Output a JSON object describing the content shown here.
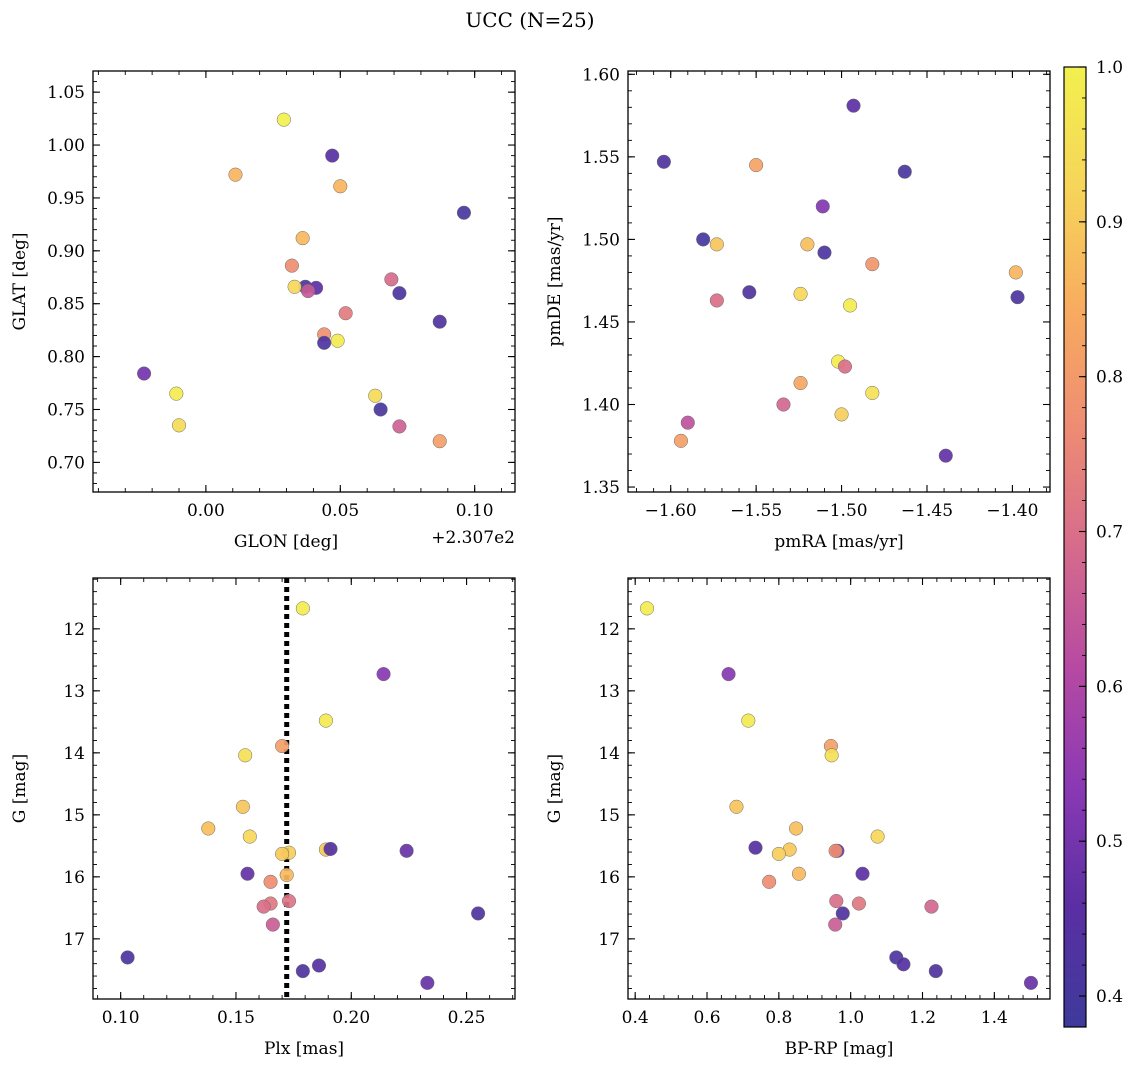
{
  "figure_title": "UCC (N=25)",
  "colormap": {
    "name": "plasma",
    "stops": [
      "#3e3a9b",
      "#5a2fa3",
      "#8a39b4",
      "#b64aa2",
      "#d66b8c",
      "#ee8c73",
      "#f8ac5f",
      "#f6d55a",
      "#f2f04e"
    ]
  },
  "colorbar": {
    "range": [
      0.38,
      1.0
    ],
    "ticks": [
      0.4,
      0.5,
      0.6,
      0.7,
      0.8,
      0.9,
      1.0
    ],
    "tick_labels": [
      "0.4",
      "0.5",
      "0.6",
      "0.7",
      "0.8",
      "0.9",
      "1.0"
    ]
  },
  "chart_data": [
    {
      "type": "scatter",
      "id": "glon-glat",
      "xlabel": "GLON [deg]",
      "ylabel": "GLAT [deg]",
      "offset_text": "+2.307e2",
      "xlim": [
        -0.042,
        0.115
      ],
      "ylim": [
        0.672,
        1.07
      ],
      "xticks": [
        0.0,
        0.05,
        0.1
      ],
      "xtick_labels": [
        "0.00",
        "0.05",
        "0.10"
      ],
      "yticks": [
        0.7,
        0.75,
        0.8,
        0.85,
        0.9,
        0.95,
        1.0,
        1.05
      ],
      "ytick_labels": [
        "0.70",
        "0.75",
        "0.80",
        "0.85",
        "0.90",
        "0.95",
        "1.00",
        "1.05"
      ],
      "x": [
        0.029,
        0.047,
        0.011,
        0.05,
        0.096,
        0.036,
        0.032,
        0.037,
        0.041,
        0.033,
        0.038,
        0.069,
        0.072,
        0.087,
        0.052,
        0.044,
        0.049,
        0.044,
        -0.023,
        -0.011,
        -0.01,
        0.063,
        0.065,
        0.072,
        0.087
      ],
      "y": [
        1.024,
        0.99,
        0.972,
        0.961,
        0.936,
        0.912,
        0.886,
        0.866,
        0.865,
        0.866,
        0.862,
        0.873,
        0.86,
        0.833,
        0.841,
        0.821,
        0.815,
        0.813,
        0.784,
        0.765,
        0.735,
        0.763,
        0.75,
        0.734,
        0.72
      ],
      "c": [
        1.0,
        0.45,
        0.86,
        0.86,
        0.4,
        0.87,
        0.77,
        0.41,
        0.46,
        0.93,
        0.65,
        0.69,
        0.42,
        0.43,
        0.73,
        0.78,
        0.98,
        0.42,
        0.5,
        0.99,
        0.94,
        0.94,
        0.41,
        0.67,
        0.81
      ]
    },
    {
      "type": "scatter",
      "id": "pmra-pmde",
      "xlabel": "pmRA [mas/yr]",
      "ylabel": "pmDE [mas/yr]",
      "xlim": [
        -1.625,
        -1.378
      ],
      "ylim": [
        1.347,
        1.602
      ],
      "xticks": [
        -1.6,
        -1.55,
        -1.5,
        -1.45,
        -1.4
      ],
      "xtick_labels": [
        "−1.60",
        "−1.55",
        "−1.50",
        "−1.45",
        "−1.40"
      ],
      "yticks": [
        1.35,
        1.4,
        1.45,
        1.5,
        1.55,
        1.6
      ],
      "ytick_labels": [
        "1.35",
        "1.40",
        "1.45",
        "1.50",
        "1.55",
        "1.60"
      ],
      "x": [
        -1.493,
        -1.604,
        -1.55,
        -1.463,
        -1.511,
        -1.581,
        -1.573,
        -1.52,
        -1.51,
        -1.482,
        -1.398,
        -1.397,
        -1.573,
        -1.554,
        -1.524,
        -1.495,
        -1.502,
        -1.498,
        -1.482,
        -1.5,
        -1.524,
        -1.534,
        -1.59,
        -1.594,
        -1.439
      ],
      "y": [
        1.581,
        1.547,
        1.545,
        1.541,
        1.52,
        1.5,
        1.497,
        1.497,
        1.492,
        1.485,
        1.48,
        1.465,
        1.463,
        1.468,
        1.467,
        1.46,
        1.426,
        1.423,
        1.407,
        1.394,
        1.413,
        1.4,
        1.389,
        1.378,
        1.369
      ],
      "c": [
        0.46,
        0.43,
        0.82,
        0.41,
        0.52,
        0.4,
        0.89,
        0.88,
        0.42,
        0.79,
        0.86,
        0.42,
        0.7,
        0.43,
        0.93,
        0.99,
        0.99,
        0.7,
        0.95,
        0.91,
        0.83,
        0.68,
        0.63,
        0.81,
        0.47
      ]
    },
    {
      "type": "scatter",
      "id": "plx-g",
      "xlabel": "Plx [mas]",
      "ylabel": "G [mag]",
      "xlim": [
        0.088,
        0.271
      ],
      "ylim": [
        17.97,
        11.18
      ],
      "y_inverted": true,
      "vline": 0.172,
      "xticks": [
        0.1,
        0.15,
        0.2,
        0.25
      ],
      "xtick_labels": [
        "0.10",
        "0.15",
        "0.20",
        "0.25"
      ],
      "yticks": [
        12,
        13,
        14,
        15,
        16,
        17
      ],
      "ytick_labels": [
        "12",
        "13",
        "14",
        "15",
        "16",
        "17"
      ],
      "x": [
        0.179,
        0.214,
        0.189,
        0.17,
        0.154,
        0.153,
        0.138,
        0.156,
        0.189,
        0.191,
        0.173,
        0.17,
        0.224,
        0.155,
        0.172,
        0.165,
        0.173,
        0.165,
        0.162,
        0.166,
        0.255,
        0.103,
        0.186,
        0.179,
        0.233
      ],
      "y": [
        11.67,
        12.73,
        13.48,
        13.89,
        14.04,
        14.87,
        15.22,
        15.35,
        15.56,
        15.55,
        15.61,
        15.63,
        15.58,
        15.95,
        15.97,
        16.08,
        16.39,
        16.43,
        16.48,
        16.77,
        16.59,
        17.3,
        17.43,
        17.52,
        17.71
      ],
      "c": [
        0.99,
        0.53,
        0.98,
        0.81,
        0.95,
        0.89,
        0.88,
        0.93,
        0.9,
        0.44,
        0.91,
        0.9,
        0.48,
        0.47,
        0.87,
        0.77,
        0.71,
        0.72,
        0.7,
        0.66,
        0.43,
        0.42,
        0.45,
        0.43,
        0.48
      ]
    },
    {
      "type": "scatter",
      "id": "bprp-g",
      "xlabel": "BP-RP [mag]",
      "ylabel": "G [mag]",
      "xlim": [
        0.38,
        1.555
      ],
      "ylim": [
        17.97,
        11.18
      ],
      "y_inverted": true,
      "xticks": [
        0.4,
        0.6,
        0.8,
        1.0,
        1.2,
        1.4
      ],
      "xtick_labels": [
        "0.4",
        "0.6",
        "0.8",
        "1.0",
        "1.2",
        "1.4"
      ],
      "yticks": [
        12,
        13,
        14,
        15,
        16,
        17
      ],
      "ytick_labels": [
        "12",
        "13",
        "14",
        "15",
        "16",
        "17"
      ],
      "x": [
        0.433,
        0.66,
        0.715,
        0.945,
        0.947,
        0.682,
        0.848,
        1.075,
        0.735,
        0.83,
        0.8,
        0.963,
        0.958,
        0.856,
        0.773,
        1.033,
        0.96,
        1.023,
        1.225,
        0.957,
        0.978,
        1.127,
        1.147,
        1.237,
        1.502
      ],
      "y": [
        11.67,
        12.73,
        13.48,
        13.89,
        14.04,
        14.87,
        15.22,
        15.35,
        15.53,
        15.56,
        15.63,
        15.58,
        15.58,
        15.95,
        16.08,
        15.95,
        16.39,
        16.43,
        16.48,
        16.77,
        16.59,
        17.3,
        17.41,
        17.52,
        17.71
      ],
      "c": [
        0.99,
        0.53,
        0.98,
        0.81,
        0.95,
        0.89,
        0.88,
        0.93,
        0.44,
        0.9,
        0.91,
        0.48,
        0.77,
        0.87,
        0.77,
        0.46,
        0.7,
        0.72,
        0.68,
        0.66,
        0.43,
        0.42,
        0.44,
        0.43,
        0.48
      ]
    }
  ]
}
